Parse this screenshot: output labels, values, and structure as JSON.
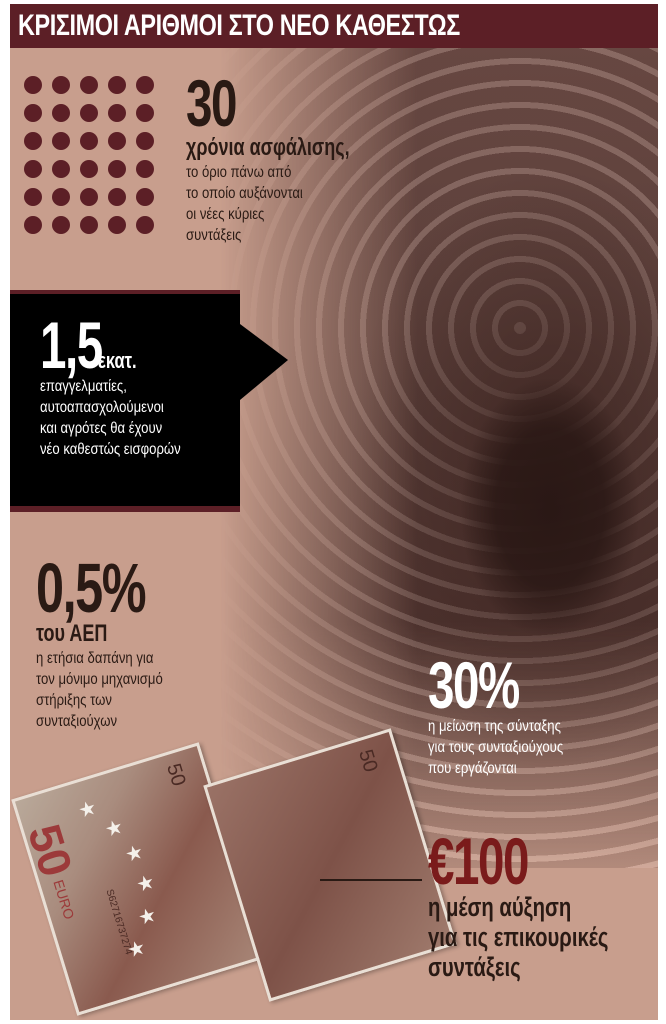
{
  "title": "ΚΡΙΣΙΜΟΙ ΑΡΙΘΜΟΙ ΣΤΟ ΝΕΟ ΚΑΘΕΣΤΩΣ",
  "colors": {
    "header": "#5c1f26",
    "background": "#c89e8d",
    "accent_red": "#7a1b1b",
    "box": "#000000"
  },
  "stats": [
    {
      "value": "30",
      "subtitle": "χρόνια ασφάλισης,",
      "lines": [
        "το όριο πάνω από",
        "το οποίο αυξάνονται",
        "οι νέες κύριες",
        "συντάξεις"
      ]
    },
    {
      "value": "1,5",
      "unit": "εκατ.",
      "lines": [
        "επαγγελματίες,",
        "αυτοαπασχολούμενοι",
        "και αγρότες θα έχουν",
        "νέο καθεστώς εισφορών"
      ]
    },
    {
      "value": "0,5%",
      "subtitle": "του ΑΕΠ",
      "lines": [
        "η ετήσια δαπάνη για",
        "τον μόνιμο μηχανισμό",
        "στήριξης των",
        "συνταξιούχων"
      ]
    },
    {
      "value": "30%",
      "lines": [
        "η μείωση της σύνταξης",
        "για τους συνταξιούχους",
        "που εργάζονται"
      ]
    },
    {
      "value": "€100",
      "lines": [
        "η μέση αύξηση",
        "για τις επικουρικές",
        "συντάξεις"
      ]
    }
  ],
  "banknote": {
    "denomination": "50",
    "currency": "EURO",
    "serial": "S62716737274"
  }
}
